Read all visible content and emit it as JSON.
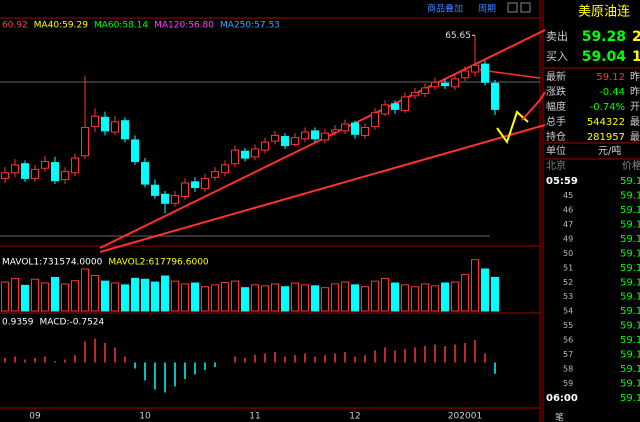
{
  "chart_data": [
    {
      "type": "candlestick",
      "legend_texts": [
        "60.92",
        "MA40:59.29",
        "MA60:58.14",
        "MA120:56.80",
        "MA250:57.53"
      ],
      "legend_colors": [
        "#ff4040",
        "#ffff00",
        "#00ff00",
        "#ff40ff",
        "#40a0ff"
      ],
      "annotation": "65.65",
      "up_color": "#ff3232",
      "down_color": "#00ffff",
      "ylim": [
        48,
        67
      ],
      "open": [
        53.0,
        53.5,
        54.3,
        53.0,
        53.9,
        54.4,
        52.9,
        53.5,
        55.0,
        57.6,
        58.4,
        57.1,
        58.1,
        56.4,
        54.4,
        52.4,
        51.6,
        50.8,
        51.4,
        52.7,
        52.1,
        53.1,
        53.5,
        54.3,
        55.4,
        54.9,
        55.5,
        56.3,
        56.7,
        56.0,
        56.5,
        57.2,
        56.4,
        57.1,
        57.2,
        57.9,
        56.8,
        57.6,
        58.7,
        59.6,
        59.0,
        60.3,
        60.5,
        61.1,
        61.4,
        61.1,
        61.9,
        62.4,
        63.1,
        61.4
      ],
      "high": [
        54.0,
        54.7,
        54.6,
        54.2,
        55.0,
        54.9,
        54.0,
        55.2,
        62.1,
        59.2,
        58.9,
        58.5,
        58.4,
        56.8,
        54.8,
        52.9,
        51.9,
        51.9,
        53.0,
        53.1,
        53.4,
        54.0,
        54.6,
        55.9,
        55.7,
        56.0,
        56.6,
        57.2,
        57.0,
        57.0,
        57.5,
        57.5,
        57.4,
        57.7,
        58.2,
        58.1,
        57.9,
        59.2,
        59.9,
        59.9,
        60.6,
        61.0,
        61.4,
        61.9,
        61.8,
        62.2,
        62.9,
        65.65,
        63.4,
        61.7
      ],
      "low": [
        52.6,
        53.1,
        52.7,
        52.7,
        53.6,
        52.5,
        52.5,
        53.2,
        54.7,
        57.1,
        56.8,
        56.8,
        56.2,
        54.2,
        52.2,
        51.2,
        49.9,
        50.5,
        51.1,
        51.8,
        51.8,
        52.8,
        53.2,
        54.0,
        54.5,
        54.6,
        55.2,
        56.0,
        55.6,
        55.8,
        56.2,
        56.2,
        56.1,
        56.8,
        56.9,
        56.5,
        56.5,
        57.3,
        58.5,
        58.7,
        58.8,
        60.0,
        60.2,
        60.8,
        60.9,
        60.8,
        61.6,
        62.0,
        61.2,
        58.6
      ],
      "close": [
        53.5,
        54.2,
        53.0,
        53.8,
        54.5,
        52.8,
        53.6,
        54.8,
        57.5,
        58.5,
        57.2,
        58.0,
        56.5,
        54.5,
        52.5,
        51.5,
        50.8,
        51.5,
        52.6,
        52.2,
        53.0,
        53.6,
        54.2,
        55.5,
        54.8,
        55.6,
        56.2,
        56.8,
        55.9,
        56.6,
        57.1,
        56.5,
        57.0,
        57.3,
        57.8,
        56.9,
        57.5,
        58.8,
        59.5,
        59.1,
        60.2,
        60.6,
        61.0,
        61.5,
        61.2,
        61.8,
        62.5,
        63.0,
        61.5,
        59.1
      ],
      "x_labels": [
        {
          "index": 3,
          "label": "09"
        },
        {
          "index": 14,
          "label": "10"
        },
        {
          "index": 25,
          "label": "11"
        },
        {
          "index": 35,
          "label": "12"
        },
        {
          "index": 46,
          "label": "202001"
        }
      ]
    },
    {
      "type": "bar",
      "legend_texts": [
        "MAVOL1:731574.0000",
        "MAVOL2:617796.6000"
      ],
      "legend_colors": [
        "#ffffff",
        "#ffff00"
      ],
      "ylim": [
        0,
        1200000
      ],
      "values": [
        620000,
        700000,
        550000,
        680000,
        600000,
        720000,
        580000,
        650000,
        900000,
        760000,
        640000,
        600000,
        560000,
        700000,
        680000,
        620000,
        750000,
        640000,
        580000,
        600000,
        520000,
        560000,
        610000,
        640000,
        500000,
        560000,
        540000,
        580000,
        520000,
        600000,
        560000,
        540000,
        500000,
        580000,
        620000,
        560000,
        520000,
        640000,
        700000,
        600000,
        560000,
        520000,
        580000,
        540000,
        600000,
        620000,
        780000,
        1100000,
        900000,
        720000
      ]
    },
    {
      "type": "histogram-bar",
      "legend_texts": [
        "0.9359",
        "MACD:"
      ],
      "legend_colors": [
        "#ffffff",
        "#ffffff"
      ],
      "ylim": [
        -2.5,
        2.5
      ],
      "series": [
        {
          "name": "MACD",
          "values": [
            0.3,
            0.4,
            0.2,
            0.3,
            0.4,
            0.1,
            0.2,
            0.5,
            1.4,
            1.6,
            1.3,
            1.0,
            0.4,
            -0.4,
            -1.2,
            -1.8,
            -2.0,
            -1.6,
            -1.1,
            -0.8,
            -0.5,
            -0.3,
            0.0,
            0.4,
            0.3,
            0.5,
            0.6,
            0.7,
            0.4,
            0.5,
            0.6,
            0.4,
            0.5,
            0.6,
            0.7,
            0.4,
            0.5,
            0.8,
            1.0,
            0.8,
            0.9,
            1.0,
            1.1,
            1.2,
            1.1,
            1.2,
            1.3,
            1.5,
            0.6,
            -0.7524
          ]
        }
      ]
    }
  ],
  "toolbar": [
    "商品叠加",
    "周期"
  ],
  "quote": {
    "title": "美原油连",
    "bidask": [
      [
        "卖出",
        "59.28",
        "2"
      ],
      [
        "买入",
        "59.04",
        "1"
      ]
    ],
    "rows": [
      [
        "最新",
        "59.12",
        "昨"
      ],
      [
        "涨跌",
        "-0.44",
        "昨"
      ],
      [
        "幅度",
        "-0.74%",
        "开"
      ],
      [
        "总手",
        "544322",
        "最"
      ],
      [
        "持仓",
        "281957",
        "最"
      ]
    ],
    "unit": [
      "单位",
      "元/吨"
    ],
    "head": [
      "北京",
      "价格"
    ],
    "ticks": [
      [
        "05:59",
        "59.1"
      ],
      [
        "45",
        "59.1"
      ],
      [
        "46",
        "59.1"
      ],
      [
        "47",
        "59.1"
      ],
      [
        "49",
        "59.1"
      ],
      [
        "50",
        "59.1"
      ],
      [
        "51",
        "59.1"
      ],
      [
        "52",
        "59.1"
      ],
      [
        "53",
        "59.1"
      ],
      [
        "54",
        "59.1"
      ],
      [
        "55",
        "59.1"
      ],
      [
        "56",
        "59.1"
      ],
      [
        "57",
        "59.1"
      ],
      [
        "58",
        "59.1"
      ],
      [
        "59",
        "59.1"
      ],
      [
        "06:00",
        "59.1"
      ]
    ],
    "footer": "笔"
  }
}
